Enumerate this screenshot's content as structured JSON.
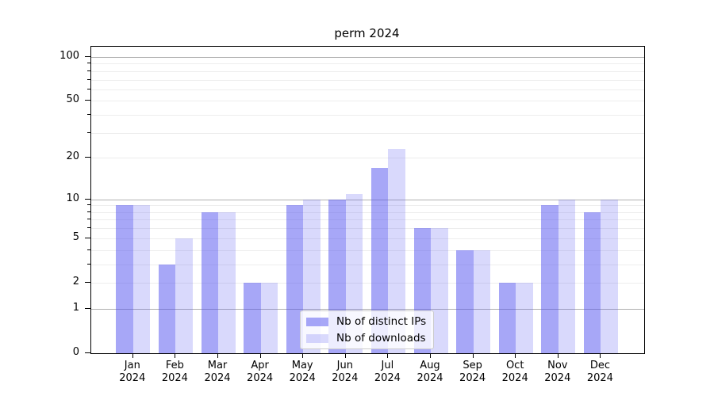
{
  "chart_data": {
    "type": "bar",
    "title": "perm 2024",
    "categories": [
      "Jan",
      "Feb",
      "Mar",
      "Apr",
      "May",
      "Jun",
      "Jul",
      "Aug",
      "Sep",
      "Oct",
      "Nov",
      "Dec"
    ],
    "x_year_label": "2024",
    "series": [
      {
        "name": "Nb of distinct IPs",
        "color": "rgba(80,80,240,0.5)",
        "color_hex_on_white": "#a8a8f7",
        "values": [
          9,
          3,
          8,
          2,
          9,
          10,
          17,
          6,
          4,
          2,
          9,
          8
        ]
      },
      {
        "name": "Nb of downloads",
        "color": "rgba(80,80,240,0.22)",
        "color_hex_on_white": "#d9d9f8",
        "values": [
          9,
          5,
          8,
          2,
          10,
          11,
          23,
          6,
          4,
          2,
          10,
          10
        ]
      }
    ],
    "yscale": "log1p",
    "y_tick_labels": [
      0,
      1,
      2,
      5,
      10,
      20,
      50,
      100
    ],
    "y_minor_grid_values": [
      2,
      3,
      4,
      5,
      6,
      7,
      8,
      9,
      20,
      30,
      40,
      50,
      60,
      70,
      80,
      90
    ],
    "y_major_grid_values": [
      1,
      10,
      100
    ],
    "ylim": [
      0,
      118
    ],
    "grid": "both",
    "legend_position": "lower-center"
  }
}
